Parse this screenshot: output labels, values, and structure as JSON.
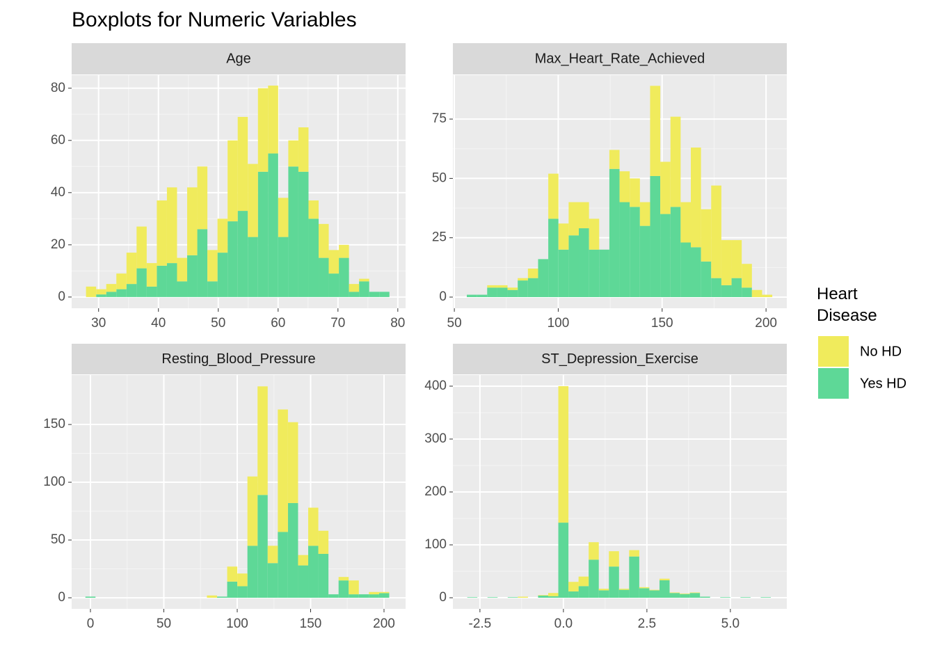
{
  "title": "Boxplots for Numeric Variables",
  "legend": {
    "title": "Heart Disease",
    "position": "right"
  },
  "chart_data": [
    {
      "type": "histogram",
      "title": "Age",
      "bins": [
        27.9,
        29.59,
        31.28,
        32.97,
        34.66,
        36.35,
        38.04,
        39.73,
        41.42,
        43.11,
        44.8,
        46.49,
        48.18,
        49.87,
        51.56,
        53.25,
        54.94,
        56.63,
        58.32,
        60.01,
        61.7,
        63.39,
        65.08,
        66.77,
        68.46,
        70.15,
        71.84,
        73.53,
        75.22,
        76.91,
        78.6
      ],
      "series": [
        {
          "name": "No HD",
          "color": "#F0EB5C",
          "values": [
            4,
            2,
            3,
            6,
            12,
            16,
            9,
            25,
            29,
            9,
            26,
            24,
            12,
            13,
            31,
            36,
            28,
            32,
            26,
            15,
            10,
            17,
            7,
            13,
            9,
            5,
            3,
            1,
            0,
            0
          ]
        },
        {
          "name": "Yes HD",
          "color": "#5ED897",
          "values": [
            0,
            1,
            2,
            3,
            5,
            11,
            4,
            12,
            13,
            6,
            16,
            26,
            6,
            17,
            29,
            33,
            23,
            48,
            55,
            23,
            50,
            48,
            30,
            15,
            9,
            15,
            2,
            6,
            2,
            2
          ]
        }
      ],
      "xlim": [
        25.5,
        81.3
      ],
      "xticks": [
        30,
        40,
        50,
        60,
        70,
        80
      ],
      "ylim": [
        -4.3,
        85
      ],
      "yticks": [
        0,
        20,
        40,
        60,
        80
      ],
      "grid": true
    },
    {
      "type": "histogram",
      "title": "Max_Heart_Rate_Achieved",
      "bins": [
        56,
        60.9,
        65.8,
        70.7,
        75.6,
        80.5,
        85.4,
        90.3,
        95.2,
        100.1,
        105,
        109.9,
        114.8,
        119.7,
        124.6,
        129.5,
        134.4,
        139.3,
        144.2,
        149.1,
        154,
        158.9,
        163.8,
        168.7,
        173.6,
        178.5,
        183.4,
        188.3,
        193.2,
        198.1,
        203
      ],
      "series": [
        {
          "name": "No HD",
          "color": "#F0EB5C",
          "values": [
            0,
            0,
            1,
            1,
            1,
            1,
            4,
            0,
            19,
            11,
            14,
            11,
            13,
            0,
            8,
            13,
            12,
            10,
            38,
            22,
            38,
            17,
            42,
            22,
            39,
            19,
            16,
            10,
            3,
            1
          ]
        },
        {
          "name": "Yes HD",
          "color": "#5ED897",
          "values": [
            1,
            1,
            4,
            4,
            3,
            7,
            8,
            16,
            33,
            20,
            26,
            29,
            20,
            20,
            54,
            40,
            38,
            30,
            51,
            35,
            38,
            23,
            21,
            15,
            8,
            5,
            8,
            4,
            0,
            0
          ]
        }
      ],
      "xlim": [
        49.3,
        210
      ],
      "xticks": [
        50,
        100,
        150,
        200
      ],
      "ylim": [
        -4.7,
        93.5
      ],
      "yticks": [
        0,
        25,
        50,
        75
      ],
      "grid": true
    },
    {
      "type": "histogram",
      "title": "Resting_Blood_Pressure",
      "bins": [
        -3.45,
        3.45,
        10.35,
        17.25,
        24.15,
        31.05,
        37.95,
        44.85,
        51.75,
        58.65,
        65.55,
        72.45,
        79.35,
        86.25,
        93.15,
        100.05,
        106.95,
        113.85,
        120.75,
        127.65,
        134.55,
        141.45,
        148.35,
        155.25,
        162.15,
        169.05,
        175.95,
        182.85,
        189.75,
        196.65,
        203.55
      ],
      "series": [
        {
          "name": "No HD",
          "color": "#F0EB5C",
          "values": [
            0,
            0,
            0,
            0,
            0,
            0,
            0,
            0,
            0,
            0,
            0,
            0,
            2,
            0,
            13,
            11,
            60,
            94,
            15,
            106,
            70,
            9,
            33,
            20,
            0,
            3,
            12,
            0,
            2,
            1
          ]
        },
        {
          "name": "Yes HD",
          "color": "#5ED897",
          "values": [
            1,
            0,
            0,
            0,
            0,
            0,
            0,
            0,
            0,
            0,
            0,
            0,
            0,
            1,
            14,
            10,
            45,
            89,
            30,
            57,
            82,
            28,
            45,
            38,
            3,
            15,
            3,
            3,
            3,
            4
          ]
        }
      ],
      "xlim": [
        -12.8,
        214.7
      ],
      "xticks": [
        0,
        50,
        100,
        150,
        200
      ],
      "ylim": [
        -9.6,
        192.8
      ],
      "yticks": [
        0,
        50,
        100,
        150
      ],
      "grid": true
    },
    {
      "type": "histogram",
      "title": "ST_Depression_Exercise",
      "bins": [
        -2.88,
        -2.577,
        -2.274,
        -1.971,
        -1.668,
        -1.365,
        -1.062,
        -0.759,
        -0.456,
        -0.153,
        0.15,
        0.453,
        0.756,
        1.059,
        1.362,
        1.665,
        1.968,
        2.271,
        2.574,
        2.877,
        3.18,
        3.483,
        3.786,
        4.089,
        4.392,
        4.695,
        4.998,
        5.301,
        5.604,
        5.907,
        6.21
      ],
      "series": [
        {
          "name": "No HD",
          "color": "#F0EB5C",
          "values": [
            0,
            0,
            0,
            0,
            0,
            2,
            0,
            1,
            6,
            258,
            18,
            18,
            33,
            3,
            29,
            2,
            12,
            2,
            1,
            3,
            1,
            1,
            1,
            0,
            0,
            0,
            0,
            0,
            0,
            0
          ]
        },
        {
          "name": "Yes HD",
          "color": "#5ED897",
          "values": [
            1,
            0,
            1,
            0,
            1,
            0,
            0,
            4,
            3,
            142,
            12,
            22,
            72,
            14,
            59,
            15,
            78,
            18,
            14,
            33,
            9,
            7,
            9,
            2,
            0,
            1,
            0,
            1,
            0,
            1
          ]
        }
      ],
      "xlim": [
        -3.31,
        6.69
      ],
      "xticks": [
        -2.5,
        {
          "value": 0,
          "label": "0.0"
        },
        2.5,
        {
          "value": 5,
          "label": "5.0"
        }
      ],
      "ylim": [
        -21,
        421
      ],
      "yticks": [
        0,
        100,
        200,
        300,
        400
      ],
      "grid": true
    }
  ]
}
